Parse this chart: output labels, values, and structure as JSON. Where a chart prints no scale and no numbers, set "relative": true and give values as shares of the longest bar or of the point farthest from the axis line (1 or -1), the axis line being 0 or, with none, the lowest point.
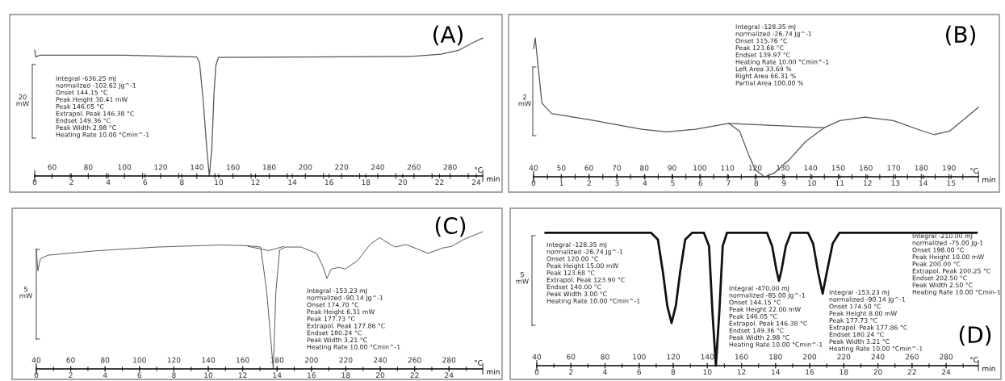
{
  "chart_data": [
    {
      "type": "line",
      "title": "(A)",
      "relative": true,
      "xlabel": "°C",
      "x2label": "min",
      "xlim": [
        50.4,
        298
      ],
      "x2lim": [
        0,
        24.35
      ],
      "xticks": [
        60,
        {
          "value": 70,
          "label": null
        },
        80,
        {
          "value": 90,
          "label": null
        },
        100,
        {
          "value": 110,
          "label": null
        },
        120,
        {
          "value": 130,
          "label": null
        },
        140,
        {
          "value": 150,
          "label": null
        },
        160,
        {
          "value": 170,
          "label": null
        },
        180,
        {
          "value": 190,
          "label": null
        },
        200,
        {
          "value": 210,
          "label": null
        },
        220,
        {
          "value": 230,
          "label": null
        },
        240,
        {
          "value": 250,
          "label": null
        },
        260,
        {
          "value": 270,
          "label": null
        },
        280,
        {
          "value": 290,
          "label": null
        }
      ],
      "x2ticks": [
        0,
        2,
        4,
        6,
        8,
        10,
        12,
        14,
        16,
        18,
        20,
        22,
        24
      ],
      "annotations": [
        "20\nmW",
        "Integral -636.25 mJ\nnormalized -102.62 Jg^-1\nOnset 144.15 °C\nPeak Height 30.41 mW\nPeak 146.05 °C\nExtrapol. Peak 146.38 °C\nEndset 149.36 °C\nPeak Width 2.98 °C\nHeating Rate 10.00 °Cmin^-1"
      ],
      "series": [
        {
          "color": "#555555",
          "x": [
            50.4,
            51,
            53,
            100,
            140,
            141.5,
            143.5,
            145.5,
            146.9,
            148.3,
            149.5,
            150.5,
            152,
            200,
            260,
            275,
            285,
            292,
            298
          ],
          "values": [
            0.9125,
            0.8625,
            0.875,
            0.875,
            0.8625,
            0.82,
            0.55,
            0.2,
            0,
            0.2,
            0.6,
            0.8,
            0.86,
            0.8625,
            0.8675,
            0.8825,
            0.9125,
            0.9625,
            1
          ]
        }
      ]
    },
    {
      "type": "line",
      "title": "(B)",
      "relative": true,
      "xlabel": "°C",
      "x2label": "min",
      "xlim": [
        40,
        200.6
      ],
      "x2lim": [
        0,
        15.98
      ],
      "xticks": [
        40,
        {
          "value": 45,
          "label": null
        },
        50,
        {
          "value": 55,
          "label": null
        },
        60,
        {
          "value": 65,
          "label": null
        },
        70,
        {
          "value": 75,
          "label": null
        },
        80,
        {
          "value": 85,
          "label": null
        },
        90,
        {
          "value": 95,
          "label": null
        },
        100,
        {
          "value": 105,
          "label": null
        },
        110,
        {
          "value": 115,
          "label": null
        },
        120,
        {
          "value": 125,
          "label": null
        },
        130,
        {
          "value": 135,
          "label": null
        },
        140,
        {
          "value": 145,
          "label": null
        },
        150,
        {
          "value": 155,
          "label": null
        },
        160,
        {
          "value": 165,
          "label": null
        },
        170,
        {
          "value": 175,
          "label": null
        },
        180,
        {
          "value": 185,
          "label": null
        },
        190,
        {
          "value": 195,
          "label": null
        }
      ],
      "x2ticks": [
        0,
        1,
        2,
        3,
        4,
        5,
        6,
        7,
        8,
        9,
        10,
        11,
        12,
        13,
        14,
        15
      ],
      "annotations": [
        "2\nmW",
        "Integral -128.35 mJ\nnormalized -26.74 Jg^-1\nOnset 115.76 °C\nPeak 123.68 °C\nEndset 139.97 °C\nHeating Rate 10.00 °Cmin^-1\nLeft Area 33.69 %\nRight Area 66.31 %\nPartial Area 100.00 %"
      ],
      "series": [
        {
          "color": "#555555",
          "x": [
            40,
            40.6,
            43,
            46.5,
            62,
            79,
            88,
            98.5,
            110.4,
            114.4,
            117.8,
            120,
            123.4,
            126.8,
            132.5,
            138.2,
            145,
            150.6,
            159.7,
            169.9,
            180.6,
            184.6,
            190.2,
            194.8,
            200.6
          ],
          "values": [
            0.924,
            1,
            0.532,
            0.456,
            0.405,
            0.342,
            0.324,
            0.342,
            0.385,
            0.329,
            0.152,
            0.051,
            0,
            0.025,
            0.127,
            0.253,
            0.354,
            0.405,
            0.43,
            0.405,
            0.329,
            0.304,
            0.329,
            0.405,
            0.501
          ]
        },
        {
          "color": "#555555",
          "x": [
            110.4,
            145
          ],
          "values": [
            0.385,
            0.354
          ]
        }
      ]
    },
    {
      "type": "line",
      "title": "(C)",
      "relative": true,
      "xlabel": "°C",
      "x2label": "min",
      "xlim": [
        40,
        299.6
      ],
      "x2lim": [
        0,
        25.96
      ],
      "xticks": [
        40,
        60,
        80,
        100,
        120,
        140,
        160,
        180,
        200,
        220,
        240,
        260,
        280
      ],
      "x2ticks": [
        0,
        {
          "value": 1,
          "label": null
        },
        2,
        {
          "value": 3,
          "label": null
        },
        4,
        {
          "value": 5,
          "label": null
        },
        6,
        {
          "value": 7,
          "label": null
        },
        8,
        {
          "value": 9,
          "label": null
        },
        10,
        {
          "value": 11,
          "label": null
        },
        12,
        {
          "value": 13,
          "label": null
        },
        14,
        {
          "value": 15,
          "label": null
        },
        16,
        {
          "value": 17,
          "label": null
        },
        18,
        {
          "value": 19,
          "label": null
        },
        20,
        {
          "value": 21,
          "label": null
        },
        22,
        {
          "value": 23,
          "label": null
        },
        24,
        {
          "value": 25,
          "label": null
        }
      ],
      "annotations": [
        "5\nmW",
        "Integral -153.23 mJ\nnormalized -90.14 Jg^-1\nOnset 174.70 °C\nPeak Height 6.31 mW\nPeak 177.73 °C\nExtrapol. Peak 177.86 °C\nEndset 180.24 °C\nPeak Width 3.21 °C\nHeating Rate 10.00 °Cmin^-1"
      ],
      "series": [
        {
          "color": "#555555",
          "x": [
            40,
            40.9,
            42.4,
            47,
            74,
            110.5,
            147,
            162.4,
            170.5,
            174,
            177.8,
            179.3,
            181.5,
            185,
            194,
            203,
            206.9,
            209,
            211.4,
            216,
            219.6,
            227,
            234,
            239.6,
            246,
            248.7,
            255,
            263,
            267.8,
            276,
            281.5,
            288.7,
            299.6
          ],
          "values": [
            0.872,
            0.714,
            0.804,
            0.829,
            0.86,
            0.888,
            0.903,
            0.898,
            0.888,
            0.561,
            0,
            0.561,
            0.867,
            0.888,
            0.888,
            0.842,
            0.74,
            0.658,
            0.727,
            0.74,
            0.727,
            0.791,
            0.906,
            0.957,
            0.906,
            0.888,
            0.906,
            0.867,
            0.842,
            0.88,
            0.893,
            0.944,
            1
          ]
        },
        {
          "color": "#555555",
          "x": [
            163,
            175.3,
            184
          ],
          "values": [
            0.893,
            0.862,
            0.893
          ]
        }
      ]
    },
    {
      "type": "line",
      "title": "(D)",
      "relative": true,
      "xlabel": "°C",
      "x2label": "min",
      "xlim": [
        40,
        298.9
      ],
      "x2lim": [
        0,
        25.89
      ],
      "xticks": [
        40,
        60,
        80,
        100,
        120,
        140,
        160,
        180,
        200,
        220,
        240,
        260,
        280
      ],
      "x2ticks": [
        0,
        {
          "value": 1,
          "label": null
        },
        2,
        {
          "value": 3,
          "label": null
        },
        4,
        {
          "value": 5,
          "label": null
        },
        6,
        {
          "value": 7,
          "label": null
        },
        8,
        {
          "value": 9,
          "label": null
        },
        10,
        {
          "value": 11,
          "label": null
        },
        12,
        {
          "value": 13,
          "label": null
        },
        14,
        {
          "value": 15,
          "label": null
        },
        16,
        {
          "value": 17,
          "label": null
        },
        18,
        {
          "value": 19,
          "label": null
        },
        20,
        {
          "value": 21,
          "label": null
        },
        22,
        {
          "value": 23,
          "label": null
        },
        24,
        {
          "value": 25,
          "label": null
        }
      ],
      "annotations": [
        "5\nmW",
        "Integral -128.35 mJ\nnormalized -26.74 Jg^-1\nOnset 120.00 °C\nPeak Height 15.00 mW\nPeak 123.68 °C\nExtrapol. Peak 123.90 °C\nEndset 140.00 °C\nPeak Width 3.00 °C\nHeating Rate 10.00 °Cmin^-1",
        "Integral -470.00 mJ\nnormalized -85.00 Jg^-1\nOnset 144.15 °C\nPeak Height 22.00 mW\nPeak 146.05 °C\nExtrapol. Peak 146.38 °C\nEndset 149.36 °C\nPeak Width 2.98 °C\nHeating Rate 10.00 °Cmin^-1",
        "Integral -153.23 mJ\nnormalized -90.14 Jg^-1\nOnset 174.50 °C\nPeak Height 8.00 mW\nPeak 177.73 °C\nExtrapol. Peak 177.86 °C\nEndset 180.24 °C\nPeak Width 3.21 °C\nHeating Rate 10.00 °Cmin^-1",
        "Integral -210.00 mJ\nnormalized -75.00 Jg-1\nOnset 198.00 °C\nPeak Height 10.00 mW\nPeak 200.00 °C\nExtrapol. Peak 200.25 °C\nEndset 202.50 °C\nPeak Width 2.50 °C\nHeating Rate 10.00 °Cmin-1"
      ],
      "series": [
        {
          "color": "#111111",
          "x": [
            45,
            107,
            111,
            114,
            116.5,
            119,
            121.5,
            124,
            127,
            131,
            138,
            141,
            143,
            145,
            147,
            149,
            151.5,
            175,
            178,
            180.5,
            182,
            183.5,
            186,
            189,
            199,
            202,
            205,
            207.6,
            210,
            213.5,
            217.4,
            298
          ],
          "values": [
            1,
            1,
            0.95,
            0.7,
            0.45,
            0.321,
            0.45,
            0.7,
            0.95,
            1,
            1,
            0.9,
            0.4,
            0,
            0.4,
            0.9,
            1,
            1,
            0.9,
            0.72,
            0.638,
            0.72,
            0.9,
            1,
            1,
            0.92,
            0.7,
            0.542,
            0.7,
            0.92,
            1,
            1
          ]
        }
      ]
    }
  ]
}
